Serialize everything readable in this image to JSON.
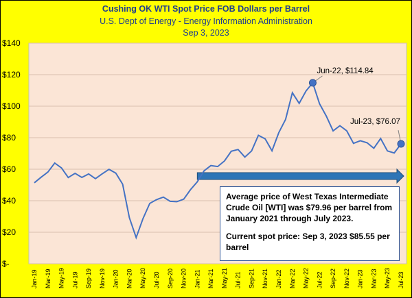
{
  "chart_data": {
    "type": "line",
    "title": "Cushing OK WTI Spot Price FOB Dollars per Barrel",
    "subtitle": "U.S. Dept of Energy - Energy Information Administration",
    "date": "Sep 3, 2023",
    "ylim": [
      0,
      140
    ],
    "ytick_labels": [
      "$-",
      "$20",
      "$40",
      "$60",
      "$80",
      "$100",
      "$120",
      "$140"
    ],
    "xtick_labels": [
      "Jan-19",
      "Mar-19",
      "May-19",
      "Jul-19",
      "Sep-19",
      "Nov-19",
      "Jan-20",
      "Mar-20",
      "May-20",
      "Jul-20",
      "Sep-20",
      "Nov-20",
      "Jan-21",
      "Mar-21",
      "May-21",
      "Jul-21",
      "Sep-21",
      "Nov-21",
      "Jan-22",
      "Mar-22",
      "May-22",
      "Jul-22",
      "Sep-22",
      "Nov-22",
      "Jan-23",
      "Mar-23",
      "May-23",
      "Jul-23"
    ],
    "x": [
      "Jan-19",
      "Feb-19",
      "Mar-19",
      "Apr-19",
      "May-19",
      "Jun-19",
      "Jul-19",
      "Aug-19",
      "Sep-19",
      "Oct-19",
      "Nov-19",
      "Dec-19",
      "Jan-20",
      "Feb-20",
      "Mar-20",
      "Apr-20",
      "May-20",
      "Jun-20",
      "Jul-20",
      "Aug-20",
      "Sep-20",
      "Oct-20",
      "Nov-20",
      "Dec-20",
      "Jan-21",
      "Feb-21",
      "Mar-21",
      "Apr-21",
      "May-21",
      "Jun-21",
      "Jul-21",
      "Aug-21",
      "Sep-21",
      "Oct-21",
      "Nov-21",
      "Dec-21",
      "Jan-22",
      "Feb-22",
      "Mar-22",
      "Apr-22",
      "May-22",
      "Jun-22",
      "Jul-22",
      "Aug-22",
      "Sep-22",
      "Oct-22",
      "Nov-22",
      "Dec-22",
      "Jan-23",
      "Feb-23",
      "Mar-23",
      "Apr-23",
      "May-23",
      "Jun-23",
      "Jul-23"
    ],
    "values": [
      51.4,
      54.9,
      58.2,
      63.9,
      60.8,
      54.7,
      57.4,
      54.8,
      57.0,
      54.0,
      57.1,
      59.9,
      57.5,
      50.5,
      29.2,
      16.6,
      28.6,
      38.3,
      40.7,
      42.3,
      39.6,
      39.4,
      41.0,
      47.0,
      52.0,
      59.0,
      62.3,
      61.7,
      65.2,
      71.4,
      72.5,
      67.7,
      71.6,
      81.5,
      79.2,
      71.7,
      83.2,
      91.6,
      108.5,
      101.8,
      109.6,
      114.84,
      101.6,
      93.7,
      84.3,
      87.6,
      84.4,
      76.4,
      78.1,
      76.8,
      73.3,
      79.5,
      71.6,
      70.3,
      76.07
    ],
    "annotations": [
      {
        "label": "Jun-22,  $114.84",
        "x": "Jun-22",
        "y": 114.84
      },
      {
        "label": "Jul-23,  $76.07",
        "x": "Jul-23",
        "y": 76.07
      }
    ],
    "average": {
      "value": 79.96,
      "from": "Jan-21",
      "to": "Jul-23"
    },
    "colors": {
      "line": "#4472c4",
      "plot_bg": "#fbe5d6",
      "page_bg": "#ffff00",
      "arrow": "#2e75b6",
      "title": "#1f3f8f"
    }
  },
  "textbox": {
    "line1": "Average price of West Texas Intermediate Crude Oil [WTI] was $79.96 per barrel from January 2021 through July 2023.",
    "line2": "Current spot price: Sep 3, 2023 $85.55 per barrel"
  }
}
